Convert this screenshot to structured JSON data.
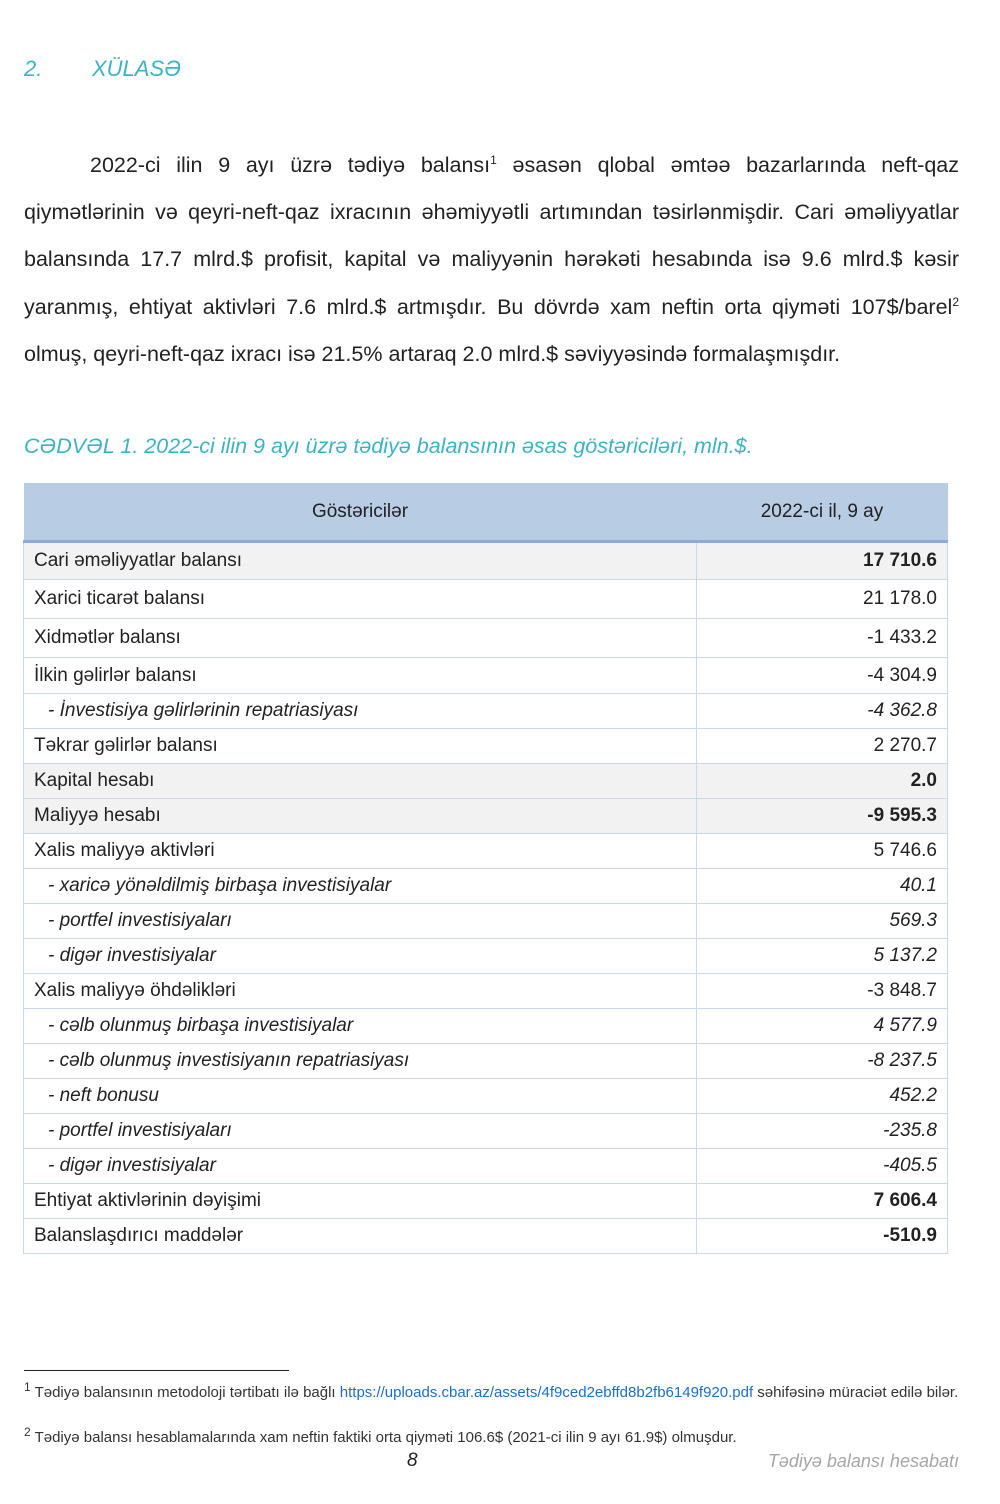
{
  "section": {
    "number": "2.",
    "title": "XÜLASƏ"
  },
  "paragraph": {
    "part1": "2022-ci ilin 9 ayı üzrə tədiyə balansı",
    "fn1": "1",
    "part2": " əsasən qlobal əmtəə bazarlarında neft-qaz qiymətlərinin və qeyri-neft-qaz ixracının əhəmiyyətli artımından təsirlənmişdir. Cari əməliyyatlar balansında 17.7 mlrd.$ profisit, kapital və maliyyənin hərəkəti hesabında isə 9.6 mlrd.$ kəsir yaranmış, ehtiyat aktivləri 7.6 mlrd.$ artmışdır. Bu dövrdə xam neftin orta qiyməti 107$/barel",
    "fn2": "2",
    "part3": " olmuş, qeyri-neft-qaz ixracı isə 21.5% artaraq 2.0 mlrd.$ səviyyəsində formalaşmışdır."
  },
  "table": {
    "caption": "CƏDVƏL 1. 2022-ci ilin 9 ayı üzrə tədiyə balansının əsas göstəriciləri, mln.$.",
    "headers": [
      "Göstəricilər",
      "2022-ci il, 9 ay"
    ],
    "rows": [
      {
        "label": "Cari əməliyyatlar balansı",
        "value": "17 710.6",
        "style": "bold shade"
      },
      {
        "label": "Xarici ticarət balansı",
        "value": "21 178.0",
        "style": ""
      },
      {
        "label": "Xidmətlər balansı",
        "value": "-1 433.2",
        "style": ""
      },
      {
        "label": "İlkin gəlirlər balansı",
        "value": "-4 304.9",
        "style": ""
      },
      {
        "label": "- İnvestisiya gəlirlərinin repatriasiyası",
        "value": "-4 362.8",
        "style": "sub"
      },
      {
        "label": "Təkrar gəlirlər balansı",
        "value": "2 270.7",
        "style": ""
      },
      {
        "label": "Kapital hesabı",
        "value": "2.0",
        "style": "bold shade"
      },
      {
        "label": "Maliyyə hesabı",
        "value": "-9 595.3",
        "style": "bold shade"
      },
      {
        "label": "Xalis maliyyə aktivləri",
        "value": "5 746.6",
        "style": ""
      },
      {
        "label": "- xaricə yönəldilmiş birbaşa investisiyalar",
        "value": "40.1",
        "style": "sub"
      },
      {
        "label": "- portfel investisiyaları",
        "value": "569.3",
        "style": "sub"
      },
      {
        "label": "- digər investisiyalar",
        "value": "5 137.2",
        "style": "sub"
      },
      {
        "label": "Xalis maliyyə öhdəlikləri",
        "value": "-3 848.7",
        "style": ""
      },
      {
        "label": "- cəlb olunmuş birbaşa investisiyalar",
        "value": "4 577.9",
        "style": "sub"
      },
      {
        "label": "- cəlb olunmuş investisiyanın repatriasiyası",
        "value": "-8 237.5",
        "style": "sub"
      },
      {
        "label": "- neft bonusu",
        "value": "452.2",
        "style": "sub"
      },
      {
        "label": "- portfel investisiyaları",
        "value": "-235.8",
        "style": "sub"
      },
      {
        "label": "- digər investisiyalar",
        "value": "-405.5",
        "style": "sub"
      },
      {
        "label": "Ehtiyat aktivlərinin dəyişimi",
        "value": "7 606.4",
        "style": "bold"
      },
      {
        "label": "Balanslaşdırıcı maddələr",
        "value": "-510.9",
        "style": "bold"
      }
    ]
  },
  "footnotes": [
    {
      "mark": "1",
      "pre": " Tədiyə balansının metodoloji tərtibatı ilə bağlı ",
      "link": "https://uploads.cbar.az/assets/4f9ced2ebffd8b2fb6149f920.pdf",
      "post": " səhifəsinə müraciət edilə bilər."
    },
    {
      "mark": "2",
      "pre": " Tədiyə balansı hesablamalarında xam neftin faktiki orta qiyməti 106.6$ (2021-ci ilin 9 ayı 61.9$) olmuşdur."
    }
  ],
  "footer": {
    "page": "8",
    "title": "Tədiyə balansı hesabatı"
  },
  "colors": {
    "accent": "#3bb3c3",
    "table_header": "#b8cce4",
    "link": "#1a6fc9"
  }
}
